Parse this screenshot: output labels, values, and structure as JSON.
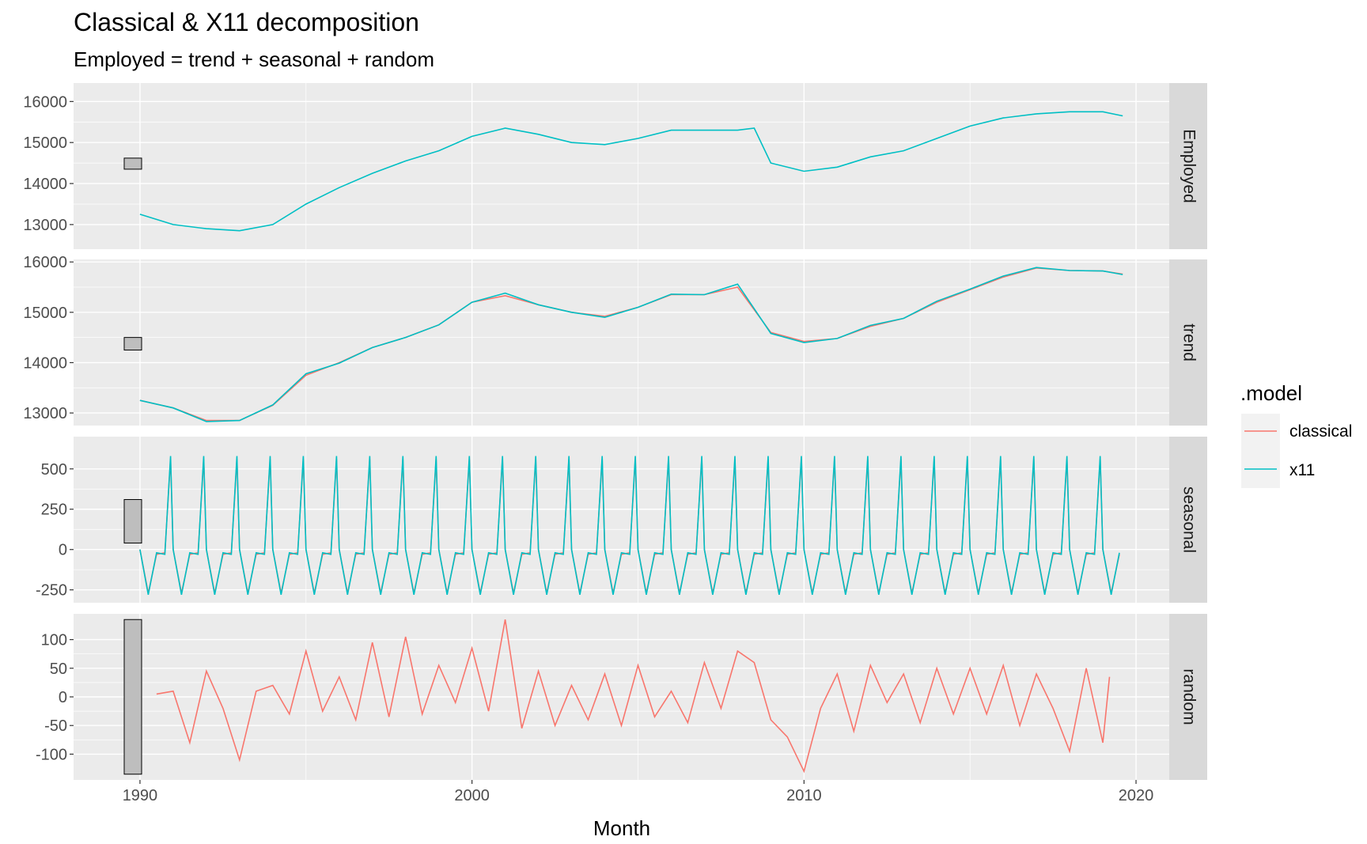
{
  "title": "Classical & X11 decomposition",
  "subtitle": "Employed = trend + seasonal + random",
  "colors": {
    "classical": "#F8766D",
    "x11": "#00BFC4",
    "panel": "#EBEBEB",
    "strip": "#D9D9D9",
    "grid": "#FFFFFF",
    "scale_bar": "#BEBEBE"
  },
  "chart_data": {
    "type": "line",
    "xlabel": "Month",
    "xlim": [
      1988.0,
      2021.0
    ],
    "x_ticks": [
      "1990",
      "2000",
      "2010",
      "2020"
    ],
    "grid": true,
    "legend": {
      "title": ".model",
      "position": "right",
      "entries": [
        "classical",
        "x11"
      ]
    },
    "panels": [
      {
        "strip": "Employed",
        "ylim": [
          12400,
          16450
        ],
        "y_ticks": [
          "13000",
          "14000",
          "15000",
          "16000"
        ],
        "scale_bar": [
          14350,
          14620
        ],
        "series": [
          {
            "name": "x11",
            "x": [
              1990.0,
              1991.0,
              1992.0,
              1993.0,
              1994.0,
              1995.0,
              1996.0,
              1997.0,
              1998.0,
              1999.0,
              2000.0,
              2001.0,
              2002.0,
              2003.0,
              2004.0,
              2005.0,
              2006.0,
              2007.0,
              2008.0,
              2008.5,
              2009.0,
              2010.0,
              2011.0,
              2012.0,
              2013.0,
              2014.0,
              2015.0,
              2016.0,
              2017.0,
              2018.0,
              2019.0,
              2019.6
            ],
            "values": [
              13250,
              13000,
              12900,
              12850,
              13000,
              13500,
              13900,
              14250,
              14550,
              14800,
              15150,
              15350,
              15200,
              15000,
              14950,
              15100,
              15300,
              15300,
              15300,
              15350,
              14500,
              14300,
              14400,
              14650,
              14800,
              15100,
              15400,
              15600,
              15700,
              15750,
              15750,
              15650
            ]
          }
        ]
      },
      {
        "strip": "trend",
        "ylim": [
          12750,
          16050
        ],
        "y_ticks": [
          "13000",
          "14000",
          "15000",
          "16000"
        ],
        "scale_bar": [
          14250,
          14500
        ],
        "series": [
          {
            "name": "classical",
            "x": [
              1990.0,
              1991.0,
              1992.0,
              1993.0,
              1994.0,
              1995.0,
              1996.0,
              1997.0,
              1998.0,
              1999.0,
              2000.0,
              2001.0,
              2002.0,
              2003.0,
              2004.0,
              2005.0,
              2006.0,
              2007.0,
              2008.0,
              2009.0,
              2010.0,
              2011.0,
              2012.0,
              2013.0,
              2014.0,
              2015.0,
              2016.0,
              2017.0,
              2018.0,
              2019.0,
              2019.6
            ],
            "values": [
              13250,
              13100,
              12850,
              12850,
              13150,
              13750,
              14000,
              14300,
              14500,
              14750,
              15200,
              15330,
              15150,
              15000,
              14920,
              15100,
              15350,
              15350,
              15500,
              14600,
              14420,
              14480,
              14720,
              14880,
              15200,
              15450,
              15700,
              15880,
              15830,
              15820,
              15760
            ]
          },
          {
            "name": "x11",
            "x": [
              1990.0,
              1991.0,
              1992.0,
              1993.0,
              1994.0,
              1995.0,
              1996.0,
              1997.0,
              1998.0,
              1999.0,
              2000.0,
              2001.0,
              2002.0,
              2003.0,
              2004.0,
              2005.0,
              2006.0,
              2007.0,
              2008.0,
              2009.0,
              2010.0,
              2011.0,
              2012.0,
              2013.0,
              2014.0,
              2015.0,
              2016.0,
              2017.0,
              2018.0,
              2019.0,
              2019.6
            ],
            "values": [
              13250,
              13100,
              12830,
              12850,
              13160,
              13780,
              13990,
              14300,
              14500,
              14750,
              15200,
              15380,
              15150,
              15000,
              14900,
              15100,
              15360,
              15350,
              15560,
              14580,
              14400,
              14480,
              14740,
              14880,
              15220,
              15460,
              15720,
              15890,
              15830,
              15820,
              15750
            ]
          }
        ]
      },
      {
        "strip": "seasonal",
        "ylim": [
          -330,
          700
        ],
        "y_ticks": [
          "-250",
          "0",
          "250",
          "500"
        ],
        "scale_bar": [
          40,
          310
        ],
        "series": [
          {
            "name": "classical",
            "x": [
              1990.0,
              1990.25,
              1990.5,
              1990.75,
              1990.92,
              1991.0
            ],
            "values": [
              0,
              -270,
              -30,
              -20,
              560,
              -280
            ]
          },
          {
            "name": "x11",
            "x": [
              1990.0,
              1990.25,
              1990.5,
              1990.75,
              1990.92,
              1991.0
            ],
            "values": [
              0,
              -280,
              -20,
              -30,
              580,
              -290
            ]
          }
        ]
      },
      {
        "strip": "random",
        "ylim": [
          -145,
          145
        ],
        "y_ticks": [
          "-100",
          "-50",
          "0",
          "50",
          "100"
        ],
        "scale_bar": [
          -135,
          135
        ],
        "series": [
          {
            "name": "classical",
            "x": [
              1990.5,
              1991.0,
              1991.5,
              1992.0,
              1992.5,
              1993.0,
              1993.5,
              1994.0,
              1994.5,
              1995.0,
              1995.5,
              1996.0,
              1996.5,
              1997.0,
              1997.5,
              1998.0,
              1998.5,
              1999.0,
              1999.5,
              2000.0,
              2000.5,
              2001.0,
              2001.5,
              2002.0,
              2002.5,
              2003.0,
              2003.5,
              2004.0,
              2004.5,
              2005.0,
              2005.5,
              2006.0,
              2006.5,
              2007.0,
              2007.5,
              2008.0,
              2008.5,
              2009.0,
              2009.5,
              2010.0,
              2010.5,
              2011.0,
              2011.5,
              2012.0,
              2012.5,
              2013.0,
              2013.5,
              2014.0,
              2014.5,
              2015.0,
              2015.5,
              2016.0,
              2016.5,
              2017.0,
              2017.5,
              2018.0,
              2018.5,
              2019.0,
              2019.2
            ],
            "values": [
              5,
              10,
              -80,
              45,
              -20,
              -110,
              10,
              20,
              -30,
              80,
              -25,
              35,
              -40,
              95,
              -35,
              105,
              -30,
              55,
              -10,
              85,
              -25,
              135,
              -55,
              45,
              -50,
              20,
              -40,
              40,
              -50,
              55,
              -35,
              10,
              -45,
              60,
              -20,
              80,
              60,
              -40,
              -70,
              -130,
              -20,
              40,
              -60,
              55,
              -10,
              40,
              -45,
              50,
              -30,
              50,
              -30,
              55,
              -50,
              40,
              -20,
              -95,
              50,
              -80,
              35
            ]
          }
        ]
      }
    ]
  }
}
